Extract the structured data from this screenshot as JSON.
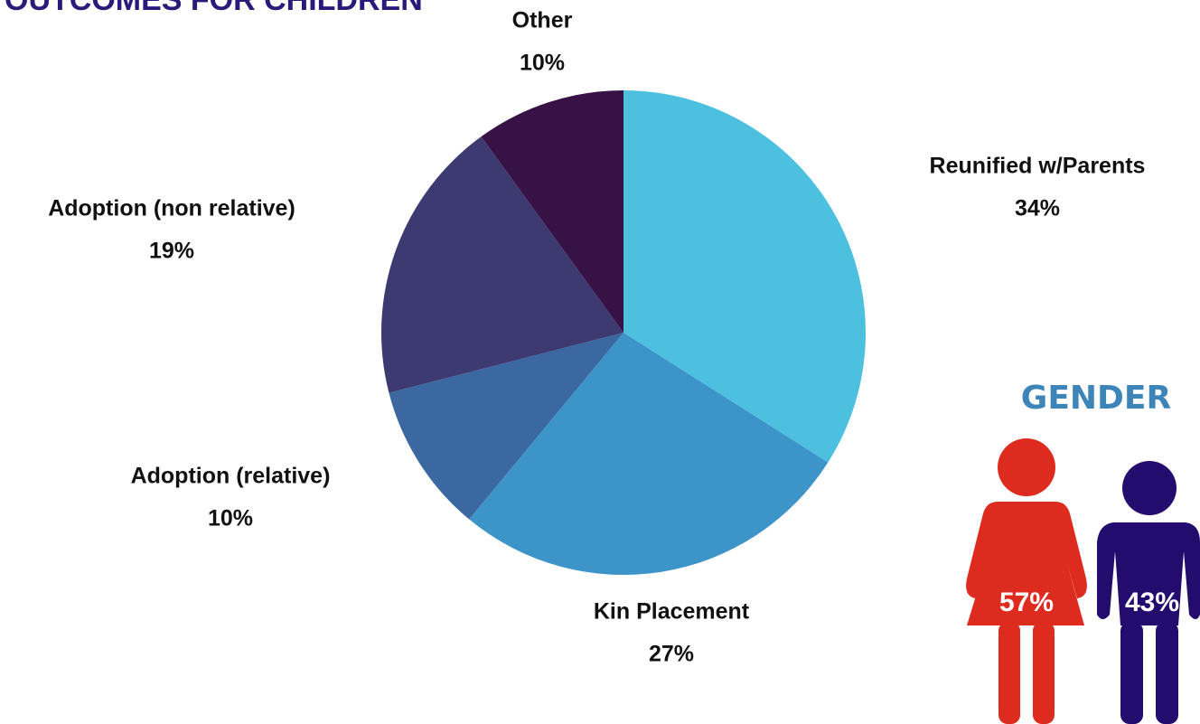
{
  "chart_data": [
    {
      "type": "pie",
      "title": "OUTCOMES FOR CHILDREN",
      "categories": [
        "Reunified w/Parents",
        "Kin Placement",
        "Adoption (relative)",
        "Adoption (non relative)",
        "Other"
      ],
      "values": [
        34,
        27,
        10,
        19,
        10
      ],
      "value_labels": [
        "34%",
        "27%",
        "10%",
        "19%",
        "10%"
      ],
      "colors": [
        "#4dc0e0",
        "#3d94c8",
        "#3b68a0",
        "#3d3a72",
        "#371244"
      ]
    },
    {
      "type": "pictograph",
      "title": "GENDER",
      "values": [
        57,
        43
      ],
      "value_labels": [
        "57%",
        "43%"
      ],
      "colors": [
        "#dd2c1f",
        "#230c6e"
      ]
    }
  ]
}
